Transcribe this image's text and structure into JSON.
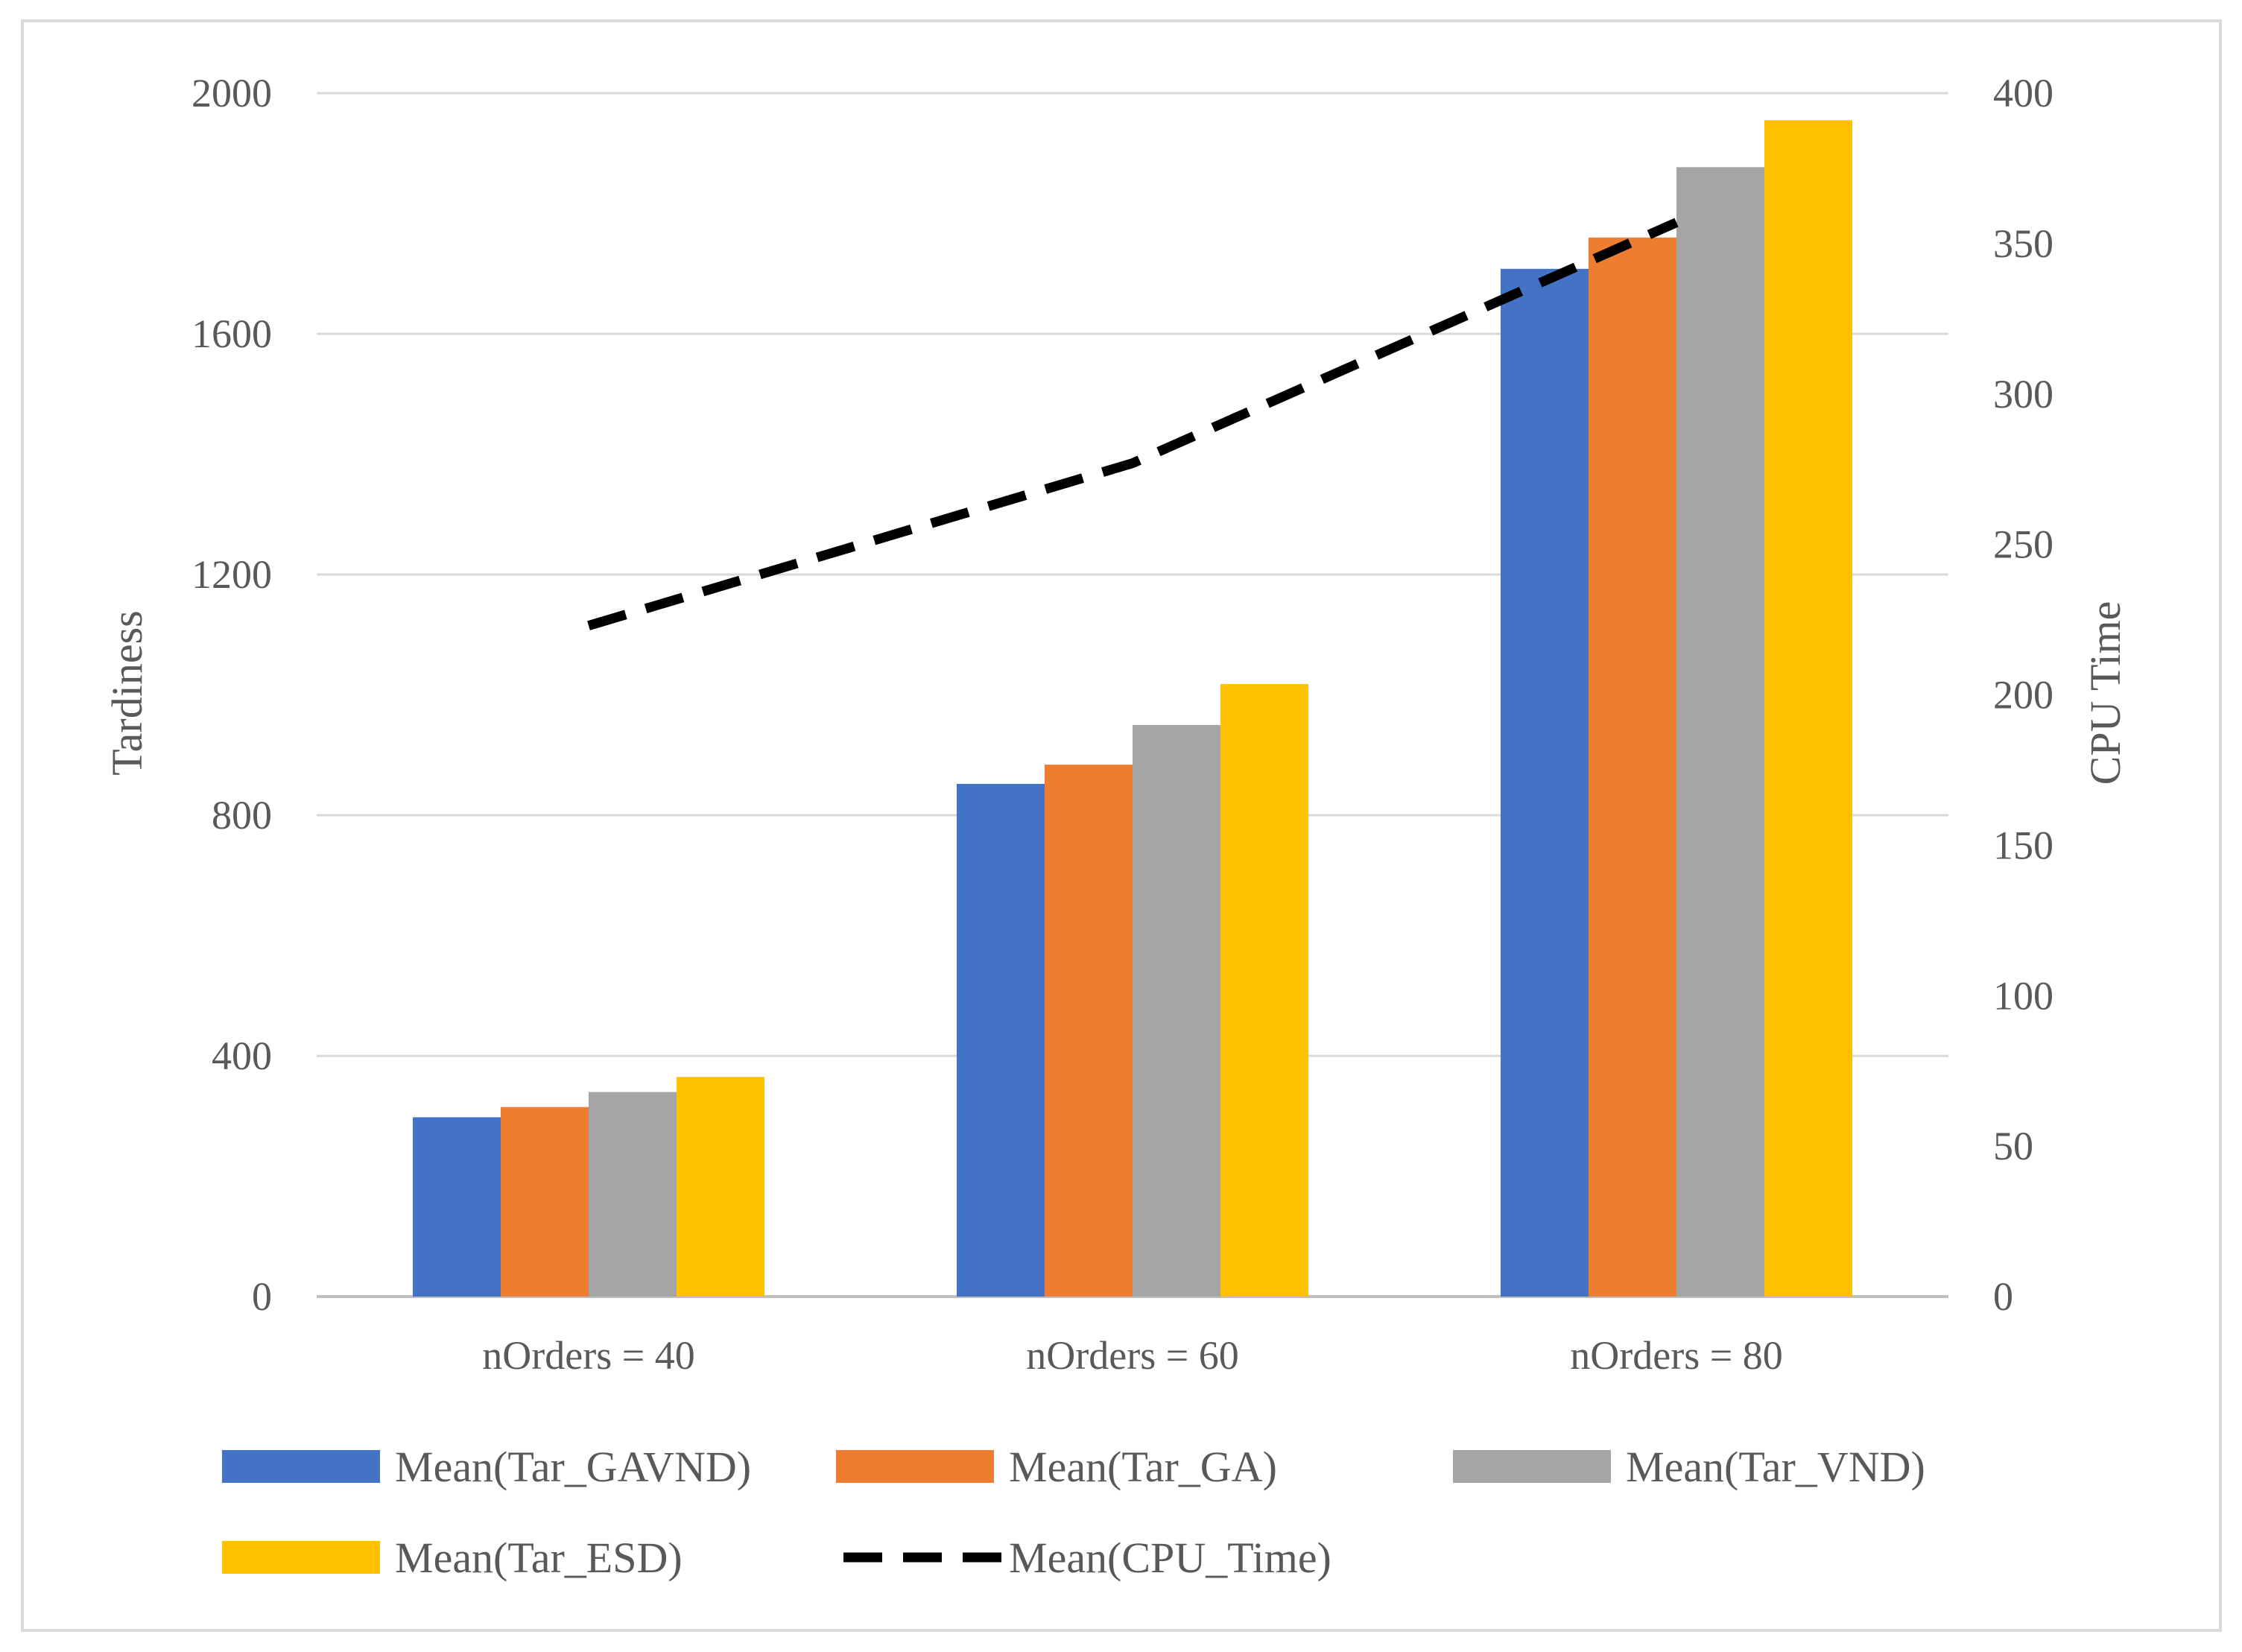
{
  "chart_data": {
    "type": "bar",
    "categories": [
      "nOrders = 40",
      "nOrders = 60",
      "nOrders = 80"
    ],
    "series": [
      {
        "name": "Mean(Tar_GAVND)",
        "type": "bar",
        "axis": "left",
        "color": "#4472C4",
        "values": [
          298,
          852,
          1708
        ]
      },
      {
        "name": "Mean(Tar_GA)",
        "type": "bar",
        "axis": "left",
        "color": "#ED7D31",
        "values": [
          315,
          884,
          1760
        ]
      },
      {
        "name": "Mean(Tar_VND)",
        "type": "bar",
        "axis": "left",
        "color": "#A5A5A5",
        "values": [
          340,
          950,
          1877
        ]
      },
      {
        "name": "Mean(Tar_ESD)",
        "type": "bar",
        "axis": "left",
        "color": "#FFC000",
        "values": [
          365,
          1018,
          1955
        ]
      },
      {
        "name": "Mean(CPU_Time)",
        "type": "line",
        "axis": "right",
        "color": "#000000",
        "dashed": true,
        "values": [
          223,
          277,
          357
        ]
      }
    ],
    "ylabel": "Tardiness",
    "y2label": "CPU Time",
    "ylim": [
      0,
      2000
    ],
    "y2lim": [
      0,
      400
    ],
    "yticks": [
      "0",
      "400",
      "800",
      "1200",
      "1600",
      "2000"
    ],
    "y2ticks": [
      "0",
      "50",
      "100",
      "150",
      "200",
      "250",
      "300",
      "350",
      "400"
    ],
    "grid": true,
    "legend": "bottom"
  }
}
